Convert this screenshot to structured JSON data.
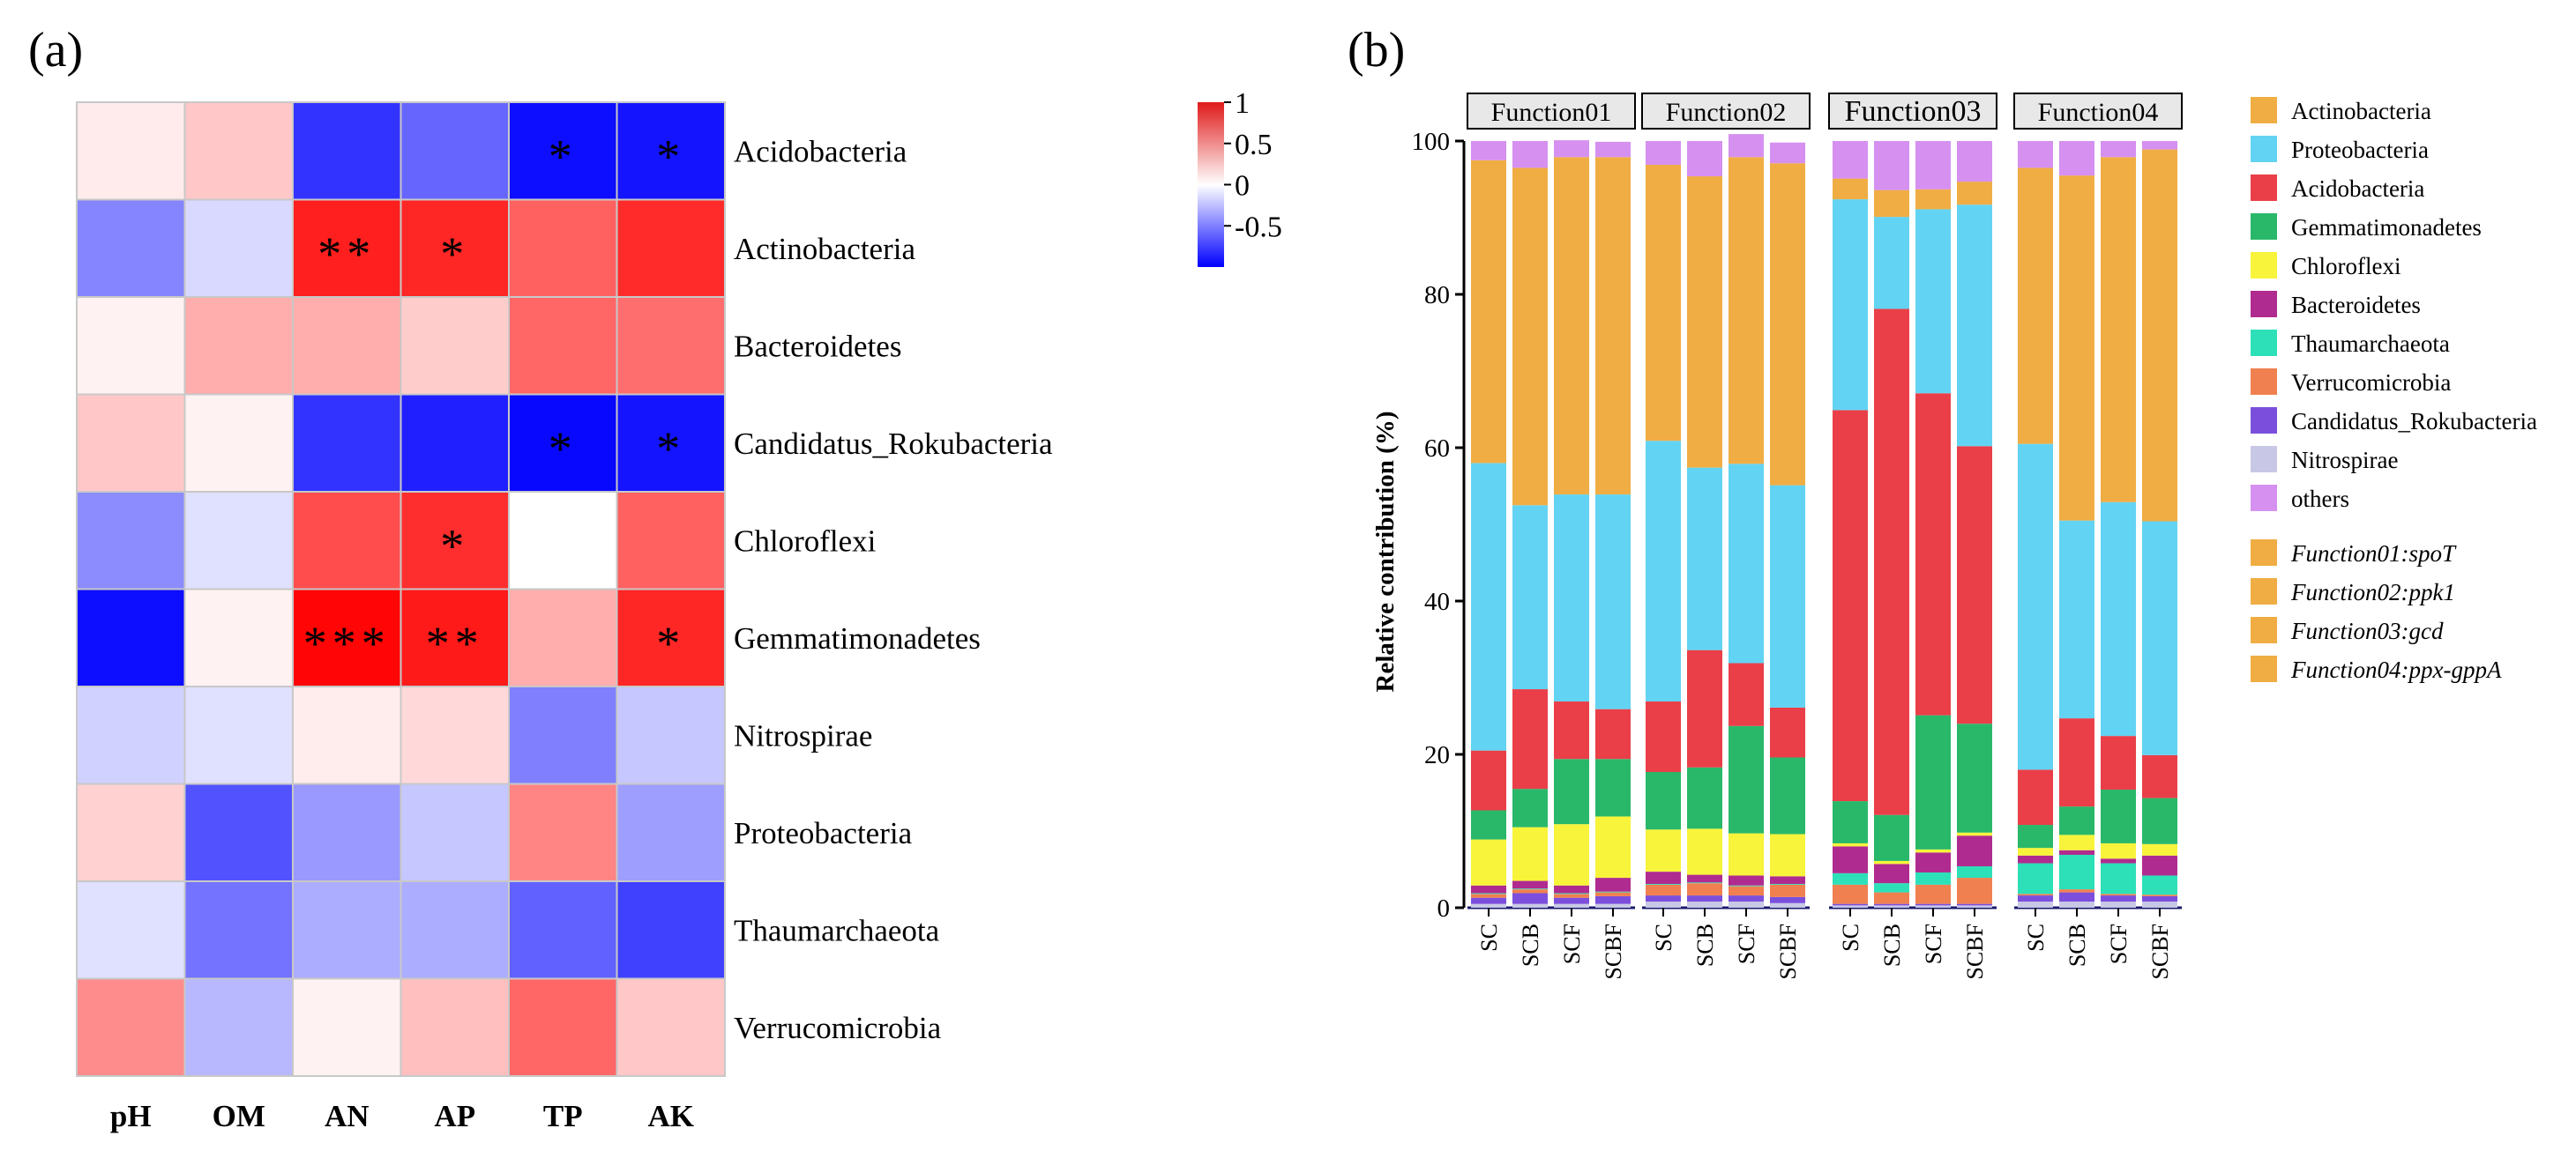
{
  "panel_labels": {
    "a": "(a)",
    "b": "(b)"
  },
  "chart_data": [
    {
      "type": "heatmap",
      "title": "",
      "rows": [
        "Acidobacteria",
        "Actinobacteria",
        "Bacteroidetes",
        "Candidatus_Rokubacteria",
        "Chloroflexi",
        "Gemmatimonadetes",
        "Nitrospirae",
        "Proteobacteria",
        "Thaumarchaeota",
        "Verrucomicrobia"
      ],
      "columns": [
        "pH",
        "OM",
        "AN",
        "AP",
        "TP",
        "AK"
      ],
      "values": [
        [
          0.08,
          0.22,
          -0.8,
          -0.6,
          -0.95,
          -0.92
        ],
        [
          -0.48,
          -0.15,
          0.88,
          0.85,
          0.62,
          0.83
        ],
        [
          0.05,
          0.32,
          0.32,
          0.2,
          0.6,
          0.57
        ],
        [
          0.22,
          0.05,
          -0.8,
          -0.88,
          -0.97,
          -0.92
        ],
        [
          -0.45,
          -0.12,
          0.7,
          0.82,
          0.0,
          0.62
        ],
        [
          -0.95,
          0.05,
          0.98,
          0.9,
          0.32,
          0.85
        ],
        [
          -0.18,
          -0.12,
          0.07,
          0.15,
          -0.5,
          -0.22
        ],
        [
          0.18,
          -0.68,
          -0.4,
          -0.22,
          0.48,
          -0.38
        ],
        [
          -0.12,
          -0.55,
          -0.32,
          -0.32,
          -0.62,
          -0.75
        ],
        [
          0.45,
          -0.28,
          0.05,
          0.25,
          0.6,
          0.22
        ]
      ],
      "significance": [
        [
          "",
          "",
          "",
          "",
          "*",
          "*"
        ],
        [
          "",
          "",
          "**",
          "*",
          "",
          ""
        ],
        [
          "",
          "",
          "",
          "",
          "",
          ""
        ],
        [
          "",
          "",
          "",
          "",
          "*",
          "*"
        ],
        [
          "",
          "",
          "",
          "*",
          "",
          ""
        ],
        [
          "",
          "",
          "***",
          "**",
          "",
          "*"
        ],
        [
          "",
          "",
          "",
          "",
          "",
          ""
        ],
        [
          "",
          "",
          "",
          "",
          "",
          ""
        ],
        [
          "",
          "",
          "",
          "",
          "",
          ""
        ],
        [
          "",
          "",
          "",
          "",
          "",
          ""
        ]
      ],
      "color_scale": {
        "min": -1,
        "max": 1,
        "low": "#0000ff",
        "mid": "#ffffff",
        "high": "#ff0000"
      },
      "colorbar_ticks": [
        {
          "value": 1,
          "label": "1"
        },
        {
          "value": 0.5,
          "label": "0.5"
        },
        {
          "value": 0,
          "label": "0"
        },
        {
          "value": -0.5,
          "label": "-0.5"
        }
      ]
    },
    {
      "type": "bar",
      "stacked": true,
      "ylabel": "Relative contribution (%)",
      "ylim": [
        0,
        100
      ],
      "yticks": [
        0,
        20,
        40,
        60,
        80,
        100
      ],
      "categories": [
        "SC",
        "SCB",
        "SCF",
        "SCBF"
      ],
      "facets": [
        {
          "label": "Function01",
          "gene": "Function01:spoT"
        },
        {
          "label": "Function02",
          "gene": "Function02:ppk1"
        },
        {
          "label": "Function03",
          "gene": "Function03:gcd"
        },
        {
          "label": "Function04",
          "gene": "Function04:ppx-gppA"
        }
      ],
      "series": [
        {
          "name": "Nitrospirae",
          "color": "#c8c8e6",
          "values": [
            [
              0.5,
              0.5,
              0.5,
              0.5
            ],
            [
              0.8,
              0.8,
              0.8,
              0.6
            ],
            [
              0.3,
              0.3,
              0.3,
              0.3
            ],
            [
              0.8,
              0.8,
              0.8,
              0.8
            ]
          ]
        },
        {
          "name": "Candidatus_Rokubacteria",
          "color": "#7b4fdc",
          "values": [
            [
              0.8,
              1.4,
              0.8,
              1.0
            ],
            [
              0.8,
              0.8,
              0.8,
              0.8
            ],
            [
              0.2,
              0.2,
              0.2,
              0.2
            ],
            [
              0.8,
              1.2,
              0.8,
              0.7
            ]
          ]
        },
        {
          "name": "Verrucomicrobia",
          "color": "#f08050",
          "values": [
            [
              0.5,
              0.5,
              0.5,
              0.5
            ],
            [
              1.4,
              1.6,
              1.2,
              1.6
            ],
            [
              2.5,
              1.5,
              2.5,
              3.4
            ],
            [
              0.2,
              0.4,
              0.2,
              0.2
            ]
          ]
        },
        {
          "name": "Thaumarchaeota",
          "color": "#2de0b8",
          "values": [
            [
              0.1,
              0.1,
              0.1,
              0.1
            ],
            [
              0.1,
              0.1,
              0.1,
              0.1
            ],
            [
              1.5,
              1.2,
              1.6,
              1.5
            ],
            [
              4.0,
              4.5,
              4.0,
              2.5
            ]
          ]
        },
        {
          "name": "Bacteroidetes",
          "color": "#b02b8f",
          "values": [
            [
              1.0,
              1.0,
              1.0,
              1.8
            ],
            [
              1.6,
              1.0,
              1.3,
              1.0
            ],
            [
              3.5,
              2.5,
              2.6,
              4.0
            ],
            [
              1.0,
              0.6,
              0.6,
              2.6
            ]
          ]
        },
        {
          "name": "Chloroflexi",
          "color": "#f7f43b",
          "values": [
            [
              6.0,
              7.0,
              8.0,
              8.0
            ],
            [
              5.5,
              6.0,
              5.5,
              5.5
            ],
            [
              0.4,
              0.4,
              0.4,
              0.4
            ],
            [
              1.0,
              2.0,
              2.0,
              1.5
            ]
          ]
        },
        {
          "name": "Gemmatimonadetes",
          "color": "#29b86a",
          "values": [
            [
              3.8,
              5.0,
              8.5,
              7.5
            ],
            [
              7.5,
              8.0,
              14.0,
              10.0
            ],
            [
              5.5,
              6.0,
              17.5,
              14.2
            ],
            [
              3.0,
              3.7,
              7.0,
              6.0
            ]
          ]
        },
        {
          "name": "Acidobacteria",
          "color": "#ea3f48",
          "values": [
            [
              7.8,
              13.0,
              7.5,
              6.5
            ],
            [
              9.2,
              15.3,
              8.2,
              6.5
            ],
            [
              51.0,
              66.0,
              42.0,
              36.2
            ],
            [
              7.2,
              11.5,
              7.0,
              5.6
            ]
          ]
        },
        {
          "name": "Proteobacteria",
          "color": "#63d3f3",
          "values": [
            [
              37.5,
              24.0,
              27.0,
              28.0
            ],
            [
              34.0,
              23.8,
              26.0,
              29.0
            ],
            [
              27.5,
              12.0,
              24.0,
              31.5
            ],
            [
              42.5,
              25.8,
              30.5,
              30.5
            ]
          ]
        },
        {
          "name": "Actinobacteria",
          "color": "#f0ad44",
          "values": [
            [
              39.5,
              44.0,
              44.0,
              44.0
            ],
            [
              36.0,
              38.0,
              40.0,
              42.0
            ],
            [
              2.7,
              3.5,
              2.6,
              3.0
            ],
            [
              36.0,
              45.0,
              45.0,
              48.5
            ]
          ]
        },
        {
          "name": "others",
          "color": "#d590f0",
          "values": [
            [
              2.5,
              3.5,
              2.2,
              2.0
            ],
            [
              3.1,
              4.6,
              3.0,
              2.7
            ],
            [
              4.9,
              6.4,
              6.3,
              5.3
            ],
            [
              3.5,
              4.5,
              2.1,
              1.1
            ]
          ]
        }
      ],
      "legend_order": [
        "Actinobacteria",
        "Proteobacteria",
        "Acidobacteria",
        "Gemmatimonadetes",
        "Chloroflexi",
        "Bacteroidetes",
        "Thaumarchaeota",
        "Verrucomicrobia",
        "Candidatus_Rokubacteria",
        "Nitrospirae",
        "others"
      ]
    }
  ]
}
